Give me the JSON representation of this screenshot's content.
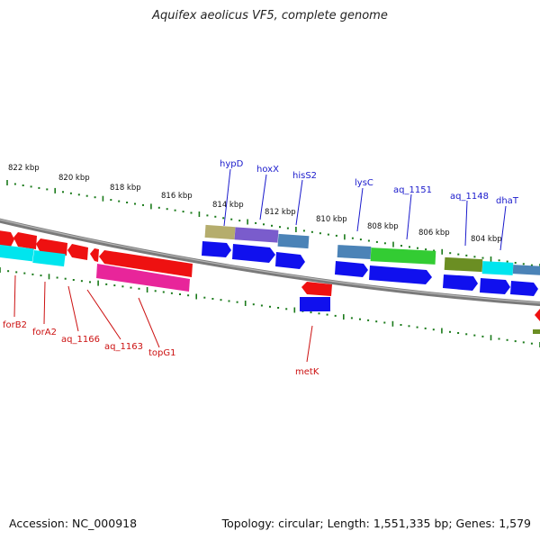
{
  "title": "Aquifex aeolicus VF5, complete genome",
  "footer": {
    "accession": "Accession: NC_000918",
    "info": "Topology: circular; Length: 1,551,335 bp; Genes: 1,579"
  },
  "colors": {
    "backbone": "#808080",
    "tick": "#1a7a1a",
    "top_label": "#1a1acc",
    "bottom_label": "#cc1111",
    "cds_blue": "#1010ee",
    "gene_red": "#ee1111"
  },
  "scale_ticks": [
    {
      "label": "822 kbp"
    },
    {
      "label": "820 kbp"
    },
    {
      "label": "818 kbp"
    },
    {
      "label": "816 kbp"
    },
    {
      "label": "814 kbp"
    },
    {
      "label": "812 kbp"
    },
    {
      "label": "810 kbp"
    },
    {
      "label": "808 kbp"
    },
    {
      "label": "806 kbp"
    },
    {
      "label": "804 kbp"
    }
  ],
  "top_gene_labels": [
    {
      "name": "hypD"
    },
    {
      "name": "hoxX"
    },
    {
      "name": "hisS2"
    },
    {
      "name": "lysC"
    },
    {
      "name": "aq_1151"
    },
    {
      "name": "aq_1148"
    },
    {
      "name": "dhaT"
    }
  ],
  "bottom_gene_labels": [
    {
      "name": "forB2"
    },
    {
      "name": "forA2"
    },
    {
      "name": "aq_1166"
    },
    {
      "name": "aq_1163"
    },
    {
      "name": "topG1"
    },
    {
      "name": "metK"
    }
  ]
}
